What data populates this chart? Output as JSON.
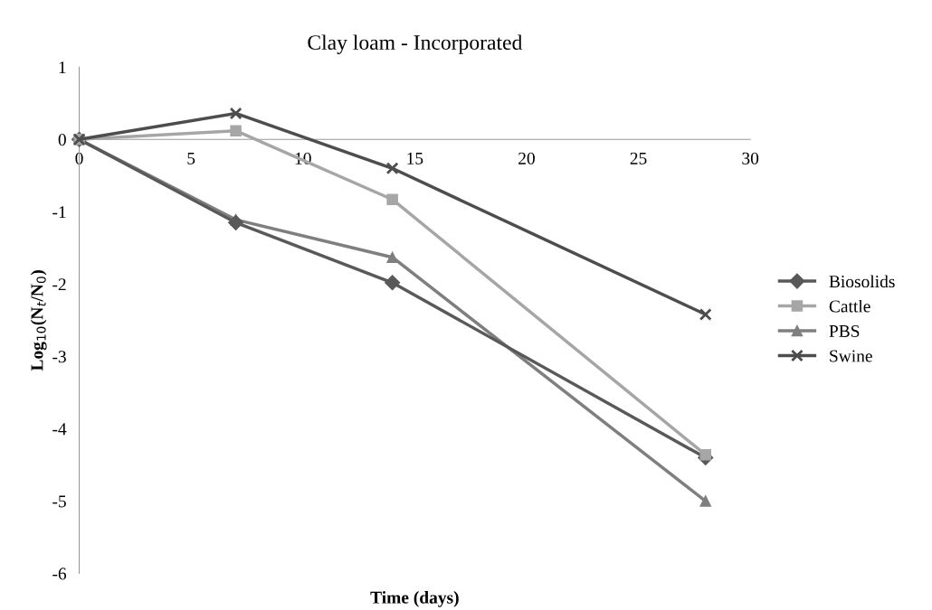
{
  "chart_data": {
    "type": "line",
    "title": "Clay loam - Incorporated",
    "xlabel": "Time (days)",
    "ylabel": "Log$_{10}$(N$_{t}$/N$_{0}$)",
    "x": [
      0,
      7,
      14,
      28
    ],
    "series": [
      {
        "name": "Biosolids",
        "color": "#595959",
        "marker": "diamond",
        "values": [
          0,
          -1.15,
          -1.98,
          -4.4
        ]
      },
      {
        "name": "Cattle",
        "color": "#a6a6a6",
        "marker": "square",
        "values": [
          0,
          0.12,
          -0.83,
          -4.36
        ]
      },
      {
        "name": "PBS",
        "color": "#7f7f7f",
        "marker": "triangle",
        "values": [
          0,
          -1.11,
          -1.63,
          -5.0
        ]
      },
      {
        "name": "Swine",
        "color": "#4d4d4d",
        "marker": "cross",
        "values": [
          0,
          0.36,
          -0.4,
          -2.42
        ]
      }
    ],
    "xlim": [
      0,
      30
    ],
    "xticks": [
      0,
      5,
      10,
      15,
      20,
      25,
      30
    ],
    "ylim": [
      -6,
      1
    ],
    "yticks": [
      -6,
      -5,
      -4,
      -3,
      -2,
      -1,
      0,
      1
    ],
    "grid": false,
    "legend": "right",
    "line_style": "solid"
  }
}
